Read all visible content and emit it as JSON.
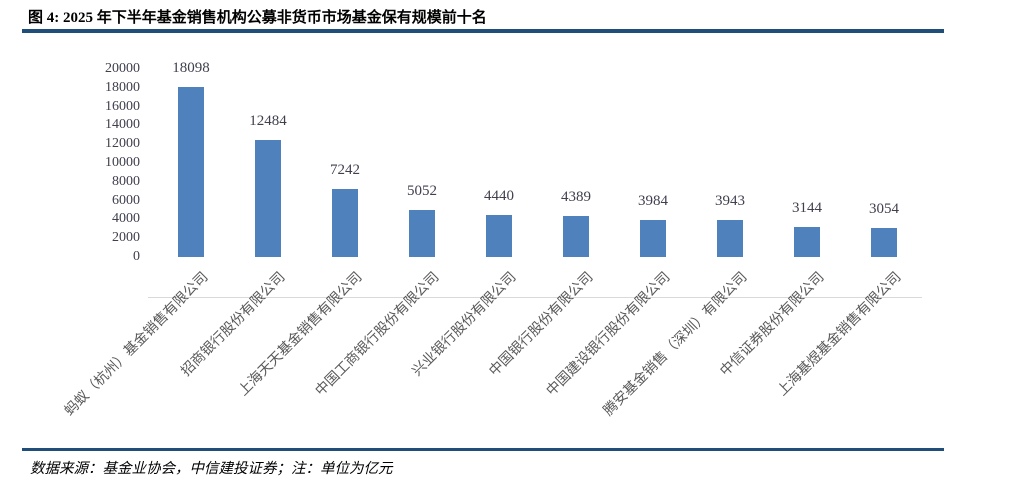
{
  "figure": {
    "title": "图 4: 2025 年下半年基金销售机构公募非货币市场基金保有规模前十名",
    "source_note": "数据来源：基金业协会，中信建投证券；注：单位为亿元"
  },
  "colors": {
    "bar": "#4F81BD",
    "rule": "#1F4E79",
    "axis_line": "#D9D9D9",
    "tick_label": "#3F3F4E",
    "value_label": "#3F3F4E",
    "category_label": "#595959"
  },
  "chart_data": {
    "type": "bar",
    "title": "2025 年下半年基金销售机构公募非货币市场基金保有规模前十名",
    "unit": "亿元",
    "categories": [
      "蚂蚁（杭州）基金销售有限公司",
      "招商银行股份有限公司",
      "上海天天基金销售有限公司",
      "中国工商银行股份有限公司",
      "兴业银行股份有限公司",
      "中国银行股份有限公司",
      "中国建设银行股份有限公司",
      "腾安基金销售（深圳）有限公司",
      "中信证券股份有限公司",
      "上海基煜基金销售有限公司"
    ],
    "values": [
      18098,
      12484,
      7242,
      5052,
      4440,
      4389,
      3984,
      3943,
      3144,
      3054
    ],
    "value_labels": [
      "18098",
      "12484",
      "7242",
      "5052",
      "4440",
      "4389",
      "3984",
      "3943",
      "3144",
      "3054"
    ],
    "xlabel": "",
    "ylabel": "",
    "ylim": [
      0,
      20000
    ],
    "ytick_step": 2000,
    "yticks": [
      0,
      2000,
      4000,
      6000,
      8000,
      10000,
      12000,
      14000,
      16000,
      18000,
      20000
    ],
    "grid": false,
    "legend": false
  }
}
